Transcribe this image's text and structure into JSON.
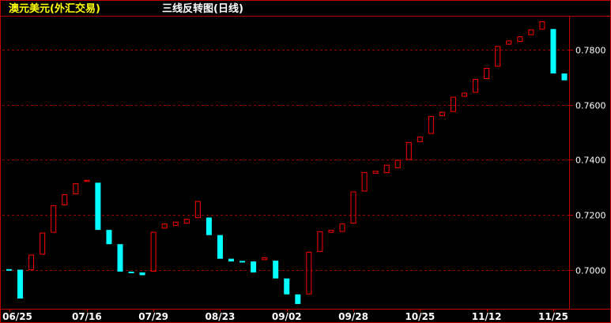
{
  "header": {
    "symbol": "澳元美元(外汇交易)",
    "chart_type_label": "三线反转图(日线)"
  },
  "colors": {
    "background": "#000000",
    "frame": "#c00000",
    "grid": "#a00000",
    "rising": "#ff0000",
    "falling": "#00ffff",
    "title_symbol": "#ffff00",
    "text": "#ffffff"
  },
  "chart_data": {
    "type": "three-line-break",
    "title": "三线反转图(日线)",
    "xlabel": "",
    "ylabel": "",
    "ylim": [
      0.688,
      0.791
    ],
    "y_ticks": [
      "0.7000",
      "0.7200",
      "0.7400",
      "0.7600",
      "0.7800"
    ],
    "x_ticks": [
      {
        "label": "06/25",
        "index": 0
      },
      {
        "label": "07/16",
        "index": 7
      },
      {
        "label": "07/29",
        "index": 13
      },
      {
        "label": "08/23",
        "index": 19
      },
      {
        "label": "09/02",
        "index": 25
      },
      {
        "label": "09/28",
        "index": 31
      },
      {
        "label": "10/25",
        "index": 37
      },
      {
        "label": "11/12",
        "index": 43
      },
      {
        "label": "11/25",
        "index": 49
      }
    ],
    "grid": true,
    "bricks": [
      {
        "open": 0.7002,
        "close": 0.6998,
        "dir": "down"
      },
      {
        "open": 0.7,
        "close": 0.6895,
        "dir": "down"
      },
      {
        "open": 0.6998,
        "close": 0.7055,
        "dir": "up"
      },
      {
        "open": 0.7055,
        "close": 0.7135,
        "dir": "up"
      },
      {
        "open": 0.7135,
        "close": 0.7235,
        "dir": "up"
      },
      {
        "open": 0.7235,
        "close": 0.7275,
        "dir": "up"
      },
      {
        "open": 0.7275,
        "close": 0.7315,
        "dir": "up"
      },
      {
        "open": 0.732,
        "close": 0.7327,
        "dir": "up"
      },
      {
        "open": 0.7317,
        "close": 0.7145,
        "dir": "down"
      },
      {
        "open": 0.7145,
        "close": 0.7093,
        "dir": "down"
      },
      {
        "open": 0.7093,
        "close": 0.6993,
        "dir": "down"
      },
      {
        "open": 0.6993,
        "close": 0.6988,
        "dir": "down"
      },
      {
        "open": 0.699,
        "close": 0.698,
        "dir": "down"
      },
      {
        "open": 0.6993,
        "close": 0.7138,
        "dir": "up"
      },
      {
        "open": 0.715,
        "close": 0.7168,
        "dir": "up"
      },
      {
        "open": 0.716,
        "close": 0.7175,
        "dir": "up"
      },
      {
        "open": 0.7168,
        "close": 0.7185,
        "dir": "up"
      },
      {
        "open": 0.7188,
        "close": 0.725,
        "dir": "up"
      },
      {
        "open": 0.719,
        "close": 0.7126,
        "dir": "down"
      },
      {
        "open": 0.7126,
        "close": 0.704,
        "dir": "down"
      },
      {
        "open": 0.704,
        "close": 0.703,
        "dir": "down"
      },
      {
        "open": 0.7032,
        "close": 0.7028,
        "dir": "down"
      },
      {
        "open": 0.703,
        "close": 0.699,
        "dir": "down"
      },
      {
        "open": 0.7035,
        "close": 0.7045,
        "dir": "up"
      },
      {
        "open": 0.7033,
        "close": 0.6968,
        "dir": "down"
      },
      {
        "open": 0.6968,
        "close": 0.691,
        "dir": "down"
      },
      {
        "open": 0.691,
        "close": 0.6875,
        "dir": "down"
      },
      {
        "open": 0.691,
        "close": 0.7065,
        "dir": "up"
      },
      {
        "open": 0.7065,
        "close": 0.714,
        "dir": "up"
      },
      {
        "open": 0.7135,
        "close": 0.7145,
        "dir": "up"
      },
      {
        "open": 0.7138,
        "close": 0.7168,
        "dir": "up"
      },
      {
        "open": 0.7168,
        "close": 0.7285,
        "dir": "up"
      },
      {
        "open": 0.7285,
        "close": 0.7355,
        "dir": "up"
      },
      {
        "open": 0.735,
        "close": 0.736,
        "dir": "up"
      },
      {
        "open": 0.7352,
        "close": 0.7382,
        "dir": "up"
      },
      {
        "open": 0.737,
        "close": 0.74,
        "dir": "up"
      },
      {
        "open": 0.74,
        "close": 0.7465,
        "dir": "up"
      },
      {
        "open": 0.7465,
        "close": 0.7485,
        "dir": "up"
      },
      {
        "open": 0.7495,
        "close": 0.756,
        "dir": "up"
      },
      {
        "open": 0.756,
        "close": 0.7575,
        "dir": "up"
      },
      {
        "open": 0.7575,
        "close": 0.763,
        "dir": "up"
      },
      {
        "open": 0.763,
        "close": 0.7645,
        "dir": "up"
      },
      {
        "open": 0.7645,
        "close": 0.7695,
        "dir": "up"
      },
      {
        "open": 0.7695,
        "close": 0.7735,
        "dir": "up"
      },
      {
        "open": 0.774,
        "close": 0.7815,
        "dir": "up"
      },
      {
        "open": 0.782,
        "close": 0.7835,
        "dir": "up"
      },
      {
        "open": 0.783,
        "close": 0.785,
        "dir": "up"
      },
      {
        "open": 0.7855,
        "close": 0.7875,
        "dir": "up"
      },
      {
        "open": 0.7875,
        "close": 0.7905,
        "dir": "up"
      },
      {
        "open": 0.7877,
        "close": 0.7715,
        "dir": "down"
      },
      {
        "open": 0.7715,
        "close": 0.769,
        "dir": "down"
      }
    ]
  }
}
